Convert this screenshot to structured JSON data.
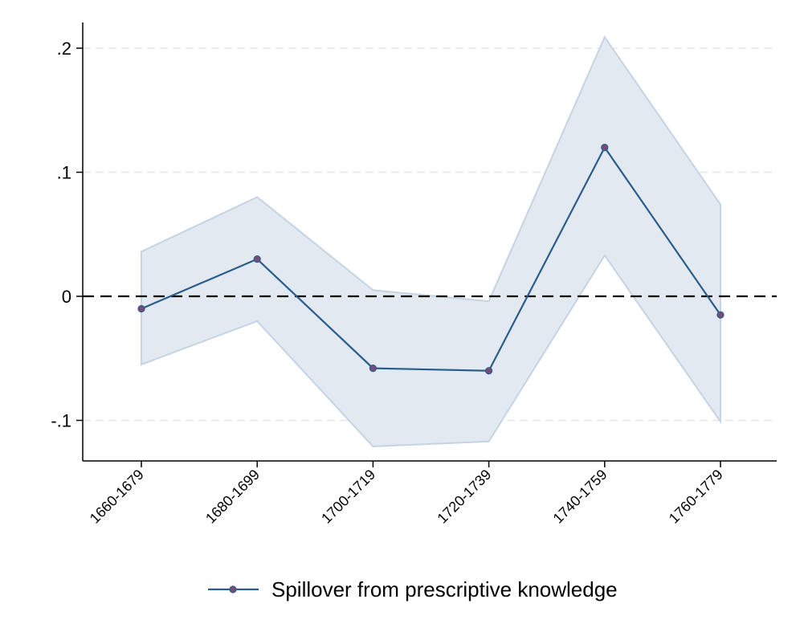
{
  "chart_data": {
    "type": "line",
    "title": "",
    "xlabel": "",
    "ylabel": "",
    "categories": [
      "1660-1679",
      "1680-1699",
      "1700-1719",
      "1720-1739",
      "1740-1759",
      "1760-1779"
    ],
    "series": [
      {
        "name": "Spillover from prescriptive knowledge",
        "values": [
          -0.01,
          0.03,
          -0.058,
          -0.06,
          0.12,
          -0.015
        ],
        "ci_upper": [
          0.036,
          0.08,
          0.005,
          -0.004,
          0.209,
          0.074
        ],
        "ci_lower": [
          -0.055,
          -0.02,
          -0.121,
          -0.117,
          0.033,
          -0.101
        ]
      }
    ],
    "yticks": [
      -0.1,
      0,
      0.1,
      0.2
    ],
    "ytick_labels": [
      "-.1",
      "0",
      ".1",
      ".2"
    ],
    "ylim": [
      -0.133,
      0.228
    ],
    "reference_line": 0,
    "grid": true,
    "legend_position": "bottom",
    "colors": {
      "line": "#2a5d8c",
      "marker_fill": "#7a4a78",
      "ci_fill": "#e2e9f1",
      "ci_stroke": "#c4d4e4",
      "grid": "#e6e6e6",
      "zero_line": "#000000"
    }
  }
}
